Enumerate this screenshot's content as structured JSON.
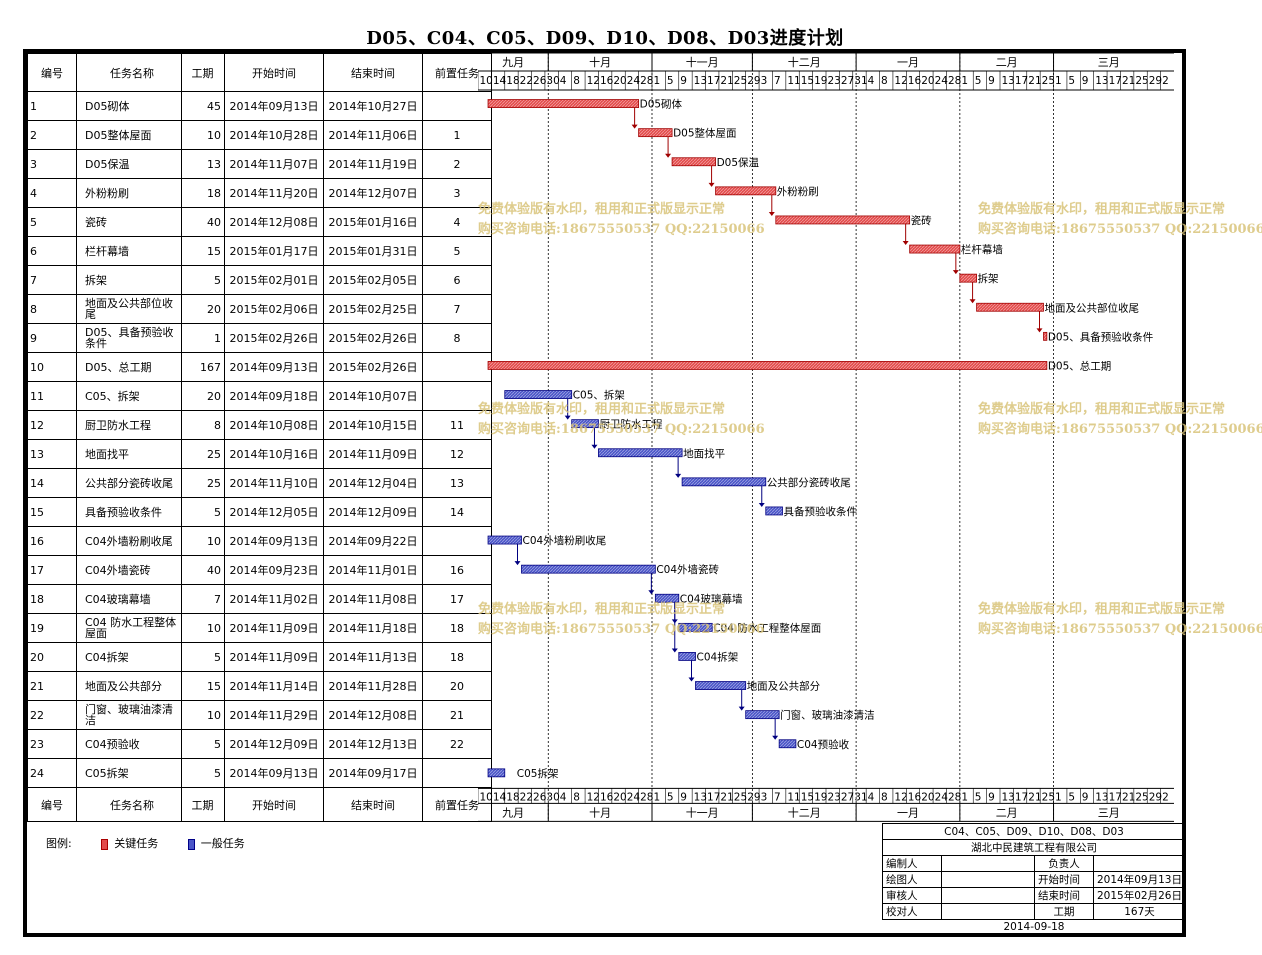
{
  "title": "D05、C04、C05、D09、D10、D08、D03进度计划",
  "headers": [
    "编号",
    "任务名称",
    "工期",
    "开始时间",
    "结束时间",
    "前置任务"
  ],
  "months": [
    "九月",
    "十月",
    "十一月",
    "十二月",
    "一月",
    "二月",
    "三月"
  ],
  "days": [
    {
      "m": "九月",
      "d": [
        "10",
        "14",
        "18",
        "22",
        "26",
        "30"
      ]
    },
    {
      "m": "十月",
      "d": [
        "4",
        "8",
        "12",
        "16",
        "20",
        "24",
        "28"
      ]
    },
    {
      "m": "十一月",
      "d": [
        "1",
        "5",
        "9",
        "13",
        "17",
        "21",
        "25",
        "29"
      ]
    },
    {
      "m": "十二月",
      "d": [
        "3",
        "7",
        "11",
        "15",
        "19",
        "23",
        "27",
        "31"
      ]
    },
    {
      "m": "一月",
      "d": [
        "4",
        "8",
        "12",
        "16",
        "20",
        "24",
        "28"
      ]
    },
    {
      "m": "二月",
      "d": [
        "1",
        "5",
        "9",
        "13",
        "17",
        "21",
        "25"
      ]
    },
    {
      "m": "三月",
      "d": [
        "1",
        "5",
        "9",
        "13",
        "17",
        "21",
        "25",
        "29",
        "2"
      ]
    }
  ],
  "tasks": [
    {
      "id": "1",
      "name": "D05砌体",
      "dur": "45",
      "start": "2014年09月13日",
      "end": "2014年10月27日",
      "pred": "",
      "type": "critical",
      "label": "D05砌体"
    },
    {
      "id": "2",
      "name": "D05整体屋面",
      "dur": "10",
      "start": "2014年10月28日",
      "end": "2014年11月06日",
      "pred": "1",
      "type": "critical",
      "label": "D05整体屋面"
    },
    {
      "id": "3",
      "name": "D05保温",
      "dur": "13",
      "start": "2014年11月07日",
      "end": "2014年11月19日",
      "pred": "2",
      "type": "critical",
      "label": "D05保温"
    },
    {
      "id": "4",
      "name": "外粉粉刷",
      "dur": "18",
      "start": "2014年11月20日",
      "end": "2014年12月07日",
      "pred": "3",
      "type": "critical",
      "label": "外粉粉刷"
    },
    {
      "id": "5",
      "name": "瓷砖",
      "dur": "40",
      "start": "2014年12月08日",
      "end": "2015年01月16日",
      "pred": "4",
      "type": "critical",
      "label": "瓷砖"
    },
    {
      "id": "6",
      "name": "栏杆幕墙",
      "dur": "15",
      "start": "2015年01月17日",
      "end": "2015年01月31日",
      "pred": "5",
      "type": "critical",
      "label": "栏杆幕墙"
    },
    {
      "id": "7",
      "name": "拆架",
      "dur": "5",
      "start": "2015年02月01日",
      "end": "2015年02月05日",
      "pred": "6",
      "type": "critical",
      "label": "拆架"
    },
    {
      "id": "8",
      "name": "地面及公共部位收尾",
      "dur": "20",
      "start": "2015年02月06日",
      "end": "2015年02月25日",
      "pred": "7",
      "type": "critical",
      "label": "地面及公共部位收尾"
    },
    {
      "id": "9",
      "name": "D05、具备预验收条件",
      "dur": "1",
      "start": "2015年02月26日",
      "end": "2015年02月26日",
      "pred": "8",
      "type": "critical",
      "label": "D05、具备预验收条件"
    },
    {
      "id": "10",
      "name": "D05、总工期",
      "dur": "167",
      "start": "2014年09月13日",
      "end": "2015年02月26日",
      "pred": "",
      "type": "critical",
      "label": "D05、总工期"
    },
    {
      "id": "11",
      "name": "C05、拆架",
      "dur": "20",
      "start": "2014年09月18日",
      "end": "2014年10月07日",
      "pred": "",
      "type": "normal",
      "label": "C05、拆架"
    },
    {
      "id": "12",
      "name": "厨卫防水工程",
      "dur": "8",
      "start": "2014年10月08日",
      "end": "2014年10月15日",
      "pred": "11",
      "type": "normal",
      "label": "厨卫防水工程"
    },
    {
      "id": "13",
      "name": "地面找平",
      "dur": "25",
      "start": "2014年10月16日",
      "end": "2014年11月09日",
      "pred": "12",
      "type": "normal",
      "label": "地面找平"
    },
    {
      "id": "14",
      "name": "公共部分瓷砖收尾",
      "dur": "25",
      "start": "2014年11月10日",
      "end": "2014年12月04日",
      "pred": "13",
      "type": "normal",
      "label": "公共部分瓷砖收尾"
    },
    {
      "id": "15",
      "name": "具备预验收条件",
      "dur": "5",
      "start": "2014年12月05日",
      "end": "2014年12月09日",
      "pred": "14",
      "type": "normal",
      "label": "具备预验收条件"
    },
    {
      "id": "16",
      "name": "C04外墙粉刷收尾",
      "dur": "10",
      "start": "2014年09月13日",
      "end": "2014年09月22日",
      "pred": "",
      "type": "normal",
      "label": "C04外墙粉刷收尾"
    },
    {
      "id": "17",
      "name": "C04外墙瓷砖",
      "dur": "40",
      "start": "2014年09月23日",
      "end": "2014年11月01日",
      "pred": "16",
      "type": "normal",
      "label": "C04外墙瓷砖"
    },
    {
      "id": "18",
      "name": "C04玻璃幕墙",
      "dur": "7",
      "start": "2014年11月02日",
      "end": "2014年11月08日",
      "pred": "17",
      "type": "normal",
      "label": "C04玻璃幕墙"
    },
    {
      "id": "19",
      "name": "C04 防水工程整体屋面",
      "dur": "10",
      "start": "2014年11月09日",
      "end": "2014年11月18日",
      "pred": "18",
      "type": "normal",
      "label": "C04 防水工程整体屋面"
    },
    {
      "id": "20",
      "name": "C04拆架",
      "dur": "5",
      "start": "2014年11月09日",
      "end": "2014年11月13日",
      "pred": "18",
      "type": "normal",
      "label": "C04拆架"
    },
    {
      "id": "21",
      "name": "地面及公共部分",
      "dur": "15",
      "start": "2014年11月14日",
      "end": "2014年11月28日",
      "pred": "20",
      "type": "normal",
      "label": "地面及公共部分"
    },
    {
      "id": "22",
      "name": "门窗、玻璃油漆清洁",
      "dur": "10",
      "start": "2014年11月29日",
      "end": "2014年12月08日",
      "pred": "21",
      "type": "normal",
      "label": "门窗、玻璃油漆清洁"
    },
    {
      "id": "23",
      "name": "C04预验收",
      "dur": "5",
      "start": "2014年12月09日",
      "end": "2014年12月13日",
      "pred": "22",
      "type": "normal",
      "label": "C04预验收"
    },
    {
      "id": "24",
      "name": "C05拆架",
      "dur": "5",
      "start": "2014年09月13日",
      "end": "2014年09月17日",
      "pred": "",
      "type": "normal",
      "label": "C05拆架"
    }
  ],
  "legend": {
    "title": "图例:",
    "critical": "关键任务",
    "normal": "一般任务"
  },
  "colors": {
    "critical": "#e34b4b",
    "normal": "#4a55c8",
    "critical_border": "#a00000",
    "normal_border": "#000080"
  },
  "info": {
    "project": "C04、C05、D09、D10、D08、D03",
    "company": "湖北中民建筑工程有限公司",
    "editor_label": "编制人",
    "owner_label": "负责人",
    "drawer_label": "绘图人",
    "start_label": "开始时间",
    "start_value": "2014年09月13日",
    "checker_label": "审核人",
    "end_label": "结束时间",
    "end_value": "2015年02月26日",
    "proof_label": "校对人",
    "dur_label": "工期",
    "dur_value": "167天",
    "date": "2014-09-18"
  },
  "watermark": {
    "line1": "免费体验版有水印，租用和正式版显示正常",
    "line2": "购买咨询电话:18675550537 QQ:22150066"
  }
}
